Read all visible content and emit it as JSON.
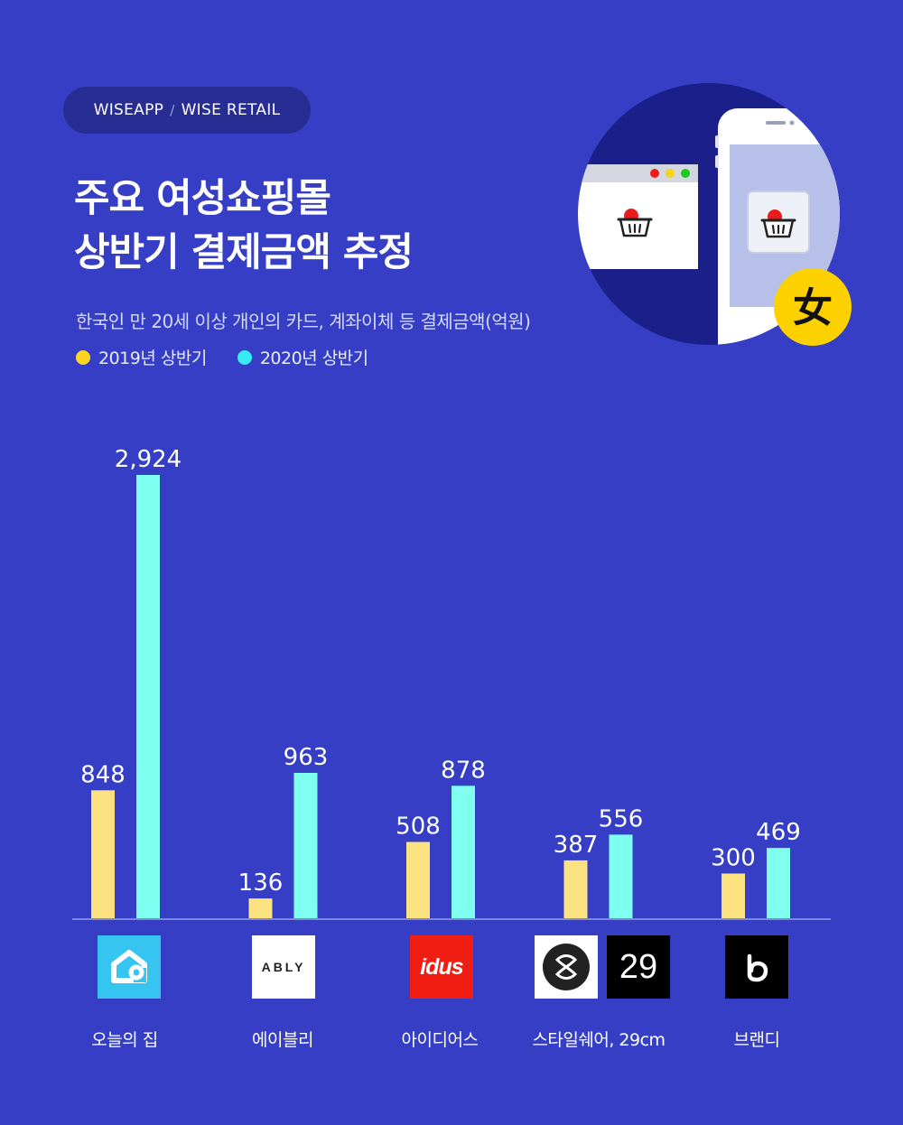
{
  "badge": {
    "part1": "WISEAPP",
    "sep": "/",
    "part2": "WISE RETAIL"
  },
  "title": {
    "line1": "주요 여성쇼핑몰",
    "line2": "상반기 결제금액 추정"
  },
  "subtitle": "한국인 만 20세 이상 개인의 카드, 계좌이체 등 결제금액(억원)",
  "hero": {
    "badge_glyph": "女"
  },
  "colors": {
    "background": "#353ec4",
    "series_2019": "#fde281",
    "series_2020": "#7ffff0",
    "axis": "#7f86e6"
  },
  "logos": {
    "ably": "ABLY",
    "idus": "idus",
    "num29": "29"
  },
  "chart_data": {
    "type": "bar",
    "categories": [
      "오늘의 집",
      "에이블리",
      "아이디어스",
      "스타일쉐어, 29cm",
      "브랜디"
    ],
    "series": [
      {
        "name": "2019년 상반기",
        "values": [
          848,
          136,
          508,
          387,
          300
        ],
        "labels": [
          "848",
          "136",
          "508",
          "387",
          "300"
        ],
        "color": "#fde281"
      },
      {
        "name": "2020년 상반기",
        "values": [
          2924,
          963,
          878,
          556,
          469
        ],
        "labels": [
          "2,924",
          "963",
          "878",
          "556",
          "469"
        ],
        "color": "#7ffff0"
      }
    ],
    "ylim": [
      0,
      3000
    ],
    "grid": false,
    "legend": "top-left"
  }
}
